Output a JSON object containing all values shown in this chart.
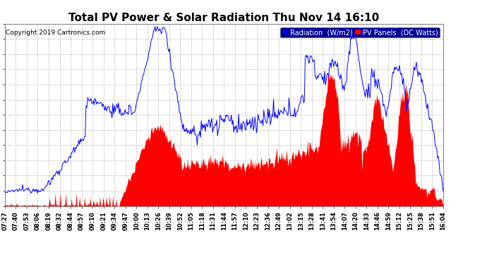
{
  "title": "Total PV Power & Solar Radiation Thu Nov 14 16:10",
  "copyright": "Copyright 2019 Cartronics.com",
  "legend_radiation": "Radiation  (W/m2)",
  "legend_pv": "PV Panels  (DC Watts)",
  "radiation_color": "#0000ff",
  "pv_color": "#ff0000",
  "background_color": "#ffffff",
  "grid_color": "#bbbbbb",
  "yticks": [
    0.0,
    20.5,
    41.0,
    61.5,
    82.0,
    102.5,
    123.0,
    143.5,
    164.0,
    184.5,
    205.0,
    225.5,
    246.0
  ],
  "ylim": [
    0,
    246.0
  ],
  "title_fontsize": 11,
  "tick_fontsize": 6,
  "copyright_fontsize": 6.5,
  "legend_fontsize": 7,
  "time_labels": [
    "07:27",
    "07:40",
    "07:53",
    "08:06",
    "08:19",
    "08:32",
    "08:44",
    "08:57",
    "09:10",
    "09:21",
    "09:34",
    "09:47",
    "10:00",
    "10:13",
    "10:26",
    "10:39",
    "10:52",
    "11:05",
    "11:18",
    "11:31",
    "11:44",
    "11:57",
    "12:10",
    "12:23",
    "12:36",
    "12:49",
    "13:02",
    "13:15",
    "13:28",
    "13:41",
    "13:54",
    "14:07",
    "14:20",
    "14:33",
    "14:46",
    "14:59",
    "15:12",
    "15:25",
    "15:38",
    "15:51",
    "16:04"
  ]
}
